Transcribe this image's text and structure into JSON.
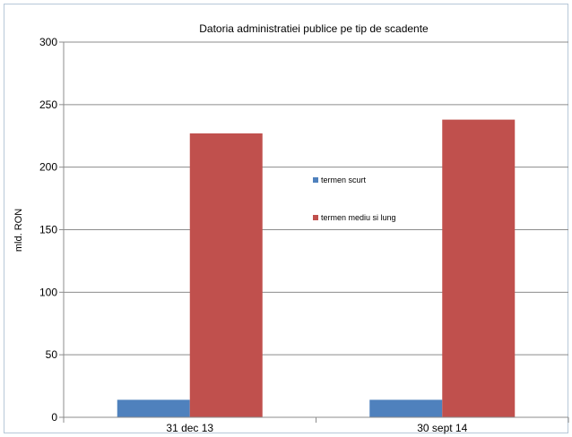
{
  "chart_data": {
    "type": "bar",
    "title": "Datoria administratiei publice  pe tip de scadente",
    "xlabel": "",
    "ylabel": "mld. RON",
    "categories": [
      "31 dec 13",
      "30 sept 14"
    ],
    "series": [
      {
        "name": "termen scurt",
        "values": [
          14,
          14
        ],
        "color": "#4f81bd"
      },
      {
        "name": "termen mediu si lung",
        "values": [
          227,
          238
        ],
        "color": "#c0504d"
      }
    ],
    "ylim": [
      0,
      300
    ],
    "yticks": [
      "0",
      "50",
      "100",
      "150",
      "200",
      "250",
      "300"
    ],
    "grid": true,
    "legend_position": "center-right"
  }
}
